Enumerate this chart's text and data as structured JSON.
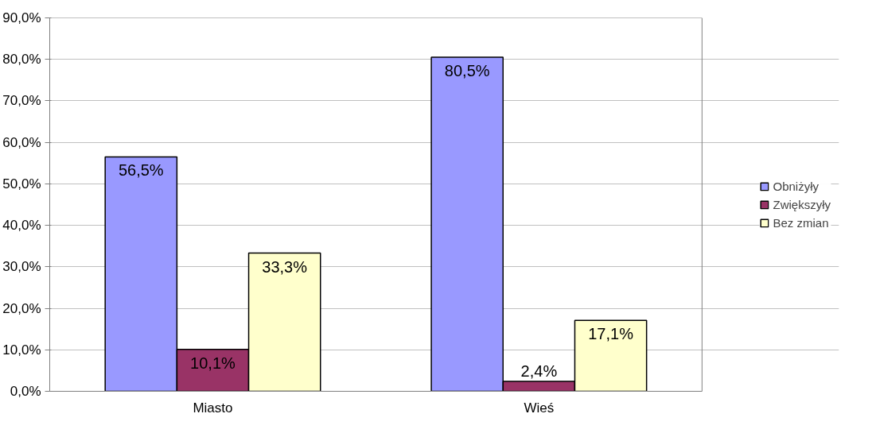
{
  "chart_data": {
    "type": "bar",
    "categories": [
      "Miasto",
      "Wieś"
    ],
    "series": [
      {
        "name": "Obniżyły",
        "color": "#9999ff",
        "values": [
          56.5,
          80.5
        ],
        "value_labels": [
          "56,5%",
          "80,5%"
        ]
      },
      {
        "name": "Zwiększyły",
        "color": "#993366",
        "values": [
          10.1,
          2.4
        ],
        "value_labels": [
          "10,1%",
          "2,4%"
        ]
      },
      {
        "name": "Bez zmian",
        "color": "#ffffcc",
        "values": [
          33.3,
          17.1
        ],
        "value_labels": [
          "33,3%",
          "17,1%"
        ]
      }
    ],
    "ylim": [
      0,
      90
    ],
    "yticks": [
      {
        "value": 0,
        "label": "0,0%"
      },
      {
        "value": 10,
        "label": "10,0%"
      },
      {
        "value": 20,
        "label": "20,0%"
      },
      {
        "value": 30,
        "label": "30,0%"
      },
      {
        "value": 40,
        "label": "40,0%"
      },
      {
        "value": 50,
        "label": "50,0%"
      },
      {
        "value": 60,
        "label": "60,0%"
      },
      {
        "value": 70,
        "label": "70,0%"
      },
      {
        "value": 80,
        "label": "80,0%"
      },
      {
        "value": 90,
        "label": "90,0%"
      }
    ],
    "grid": "y",
    "legend": "right"
  }
}
